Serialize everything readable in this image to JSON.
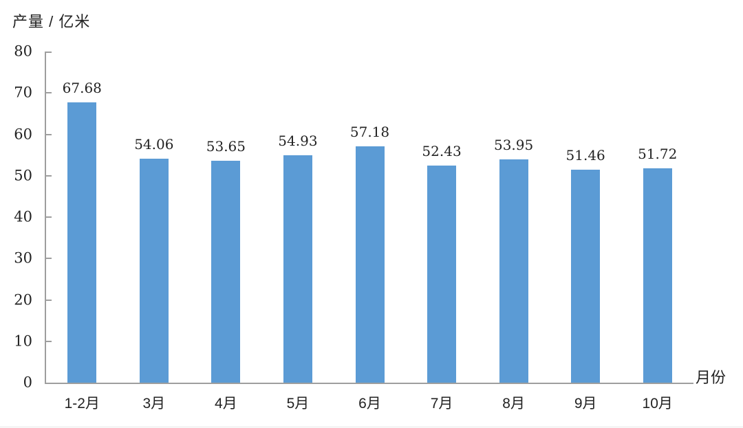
{
  "chart_data": {
    "type": "bar",
    "title": "",
    "ylabel": "产量 / 亿米",
    "xlabel": "月份",
    "categories": [
      "1-2月",
      "3月",
      "4月",
      "5月",
      "6月",
      "7月",
      "8月",
      "9月",
      "10月"
    ],
    "values": [
      67.68,
      54.06,
      53.65,
      54.93,
      57.18,
      52.43,
      53.95,
      51.46,
      51.72
    ],
    "value_labels": [
      "67.68",
      "54.06",
      "53.65",
      "54.93",
      "57.18",
      "52.43",
      "53.95",
      "51.46",
      "51.72"
    ],
    "ylim": [
      0,
      80
    ],
    "yticks": [
      0,
      10,
      20,
      30,
      40,
      50,
      60,
      70,
      80
    ],
    "grid": false,
    "legend": "none",
    "colors": {
      "bar": "#5B9BD5",
      "axis": "#9E9E9E",
      "text": "#222222",
      "background": "#FFFFFF"
    }
  }
}
